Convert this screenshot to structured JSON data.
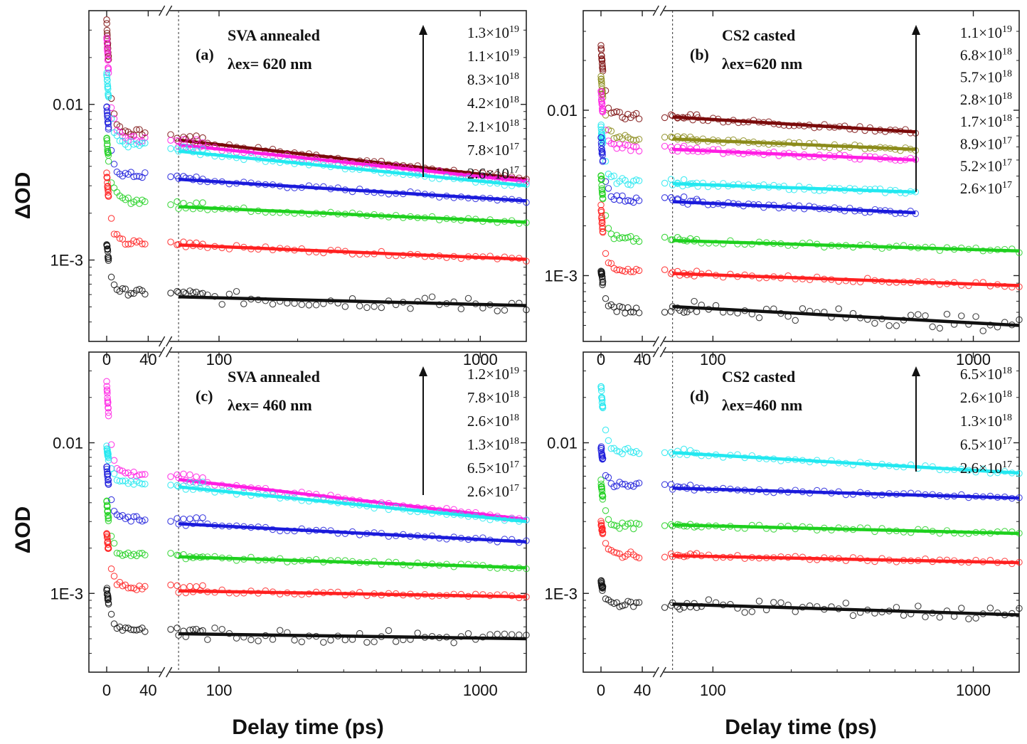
{
  "figure": {
    "xlabel": "Delay time (ps)",
    "ylabel": "ΔOD"
  },
  "chart_data": [
    {
      "type": "scatter",
      "panel": "(a)",
      "title_line1": "SVA annealed",
      "title_line2": "λex= 620 nm",
      "xlabel": "Delay time (ps)",
      "ylabel": "ΔOD",
      "y_scale": "log",
      "x_axis_note": "broken axis: linear 0–40 ps, then log scale to >1000 ps",
      "x_ticks": [
        "0",
        "40",
        "100",
        "1000"
      ],
      "y_ticks": [
        "0.01",
        "1E-3"
      ],
      "ylim": [
        0.0003,
        0.04
      ],
      "xlim_log": [
        70,
        1500
      ],
      "legend_arrow": "increasing fluence",
      "legend": [
        "1.3×10^19",
        "1.1×10^19",
        "8.3×10^18",
        "4.2×10^18",
        "2.1×10^18",
        "7.8×10^17",
        "2.6×10^17"
      ],
      "series": [
        {
          "name": "1.3×10^19",
          "color": "#7a0a0a",
          "peak": 0.035,
          "early_end": 0.0066,
          "mid": 0.0062,
          "fit": [
            [
              70,
              0.0059
            ],
            [
              1500,
              0.0033
            ]
          ]
        },
        {
          "name": "1.1×10^19",
          "color": "#ff1ee3",
          "peak": 0.028,
          "early_end": 0.006,
          "mid": 0.0058,
          "fit": [
            [
              70,
              0.0055
            ],
            [
              1500,
              0.0032
            ]
          ]
        },
        {
          "name": "8.3×10^18",
          "color": "#22e8f0",
          "peak": 0.016,
          "early_end": 0.0055,
          "mid": 0.0052,
          "fit": [
            [
              70,
              0.005
            ],
            [
              1500,
              0.003
            ]
          ]
        },
        {
          "name": "4.2×10^18",
          "color": "#1a1adb",
          "peak": 0.01,
          "early_end": 0.0035,
          "mid": 0.0034,
          "fit": [
            [
              70,
              0.0033
            ],
            [
              1500,
              0.0024
            ]
          ]
        },
        {
          "name": "2.1×10^18",
          "color": "#1ed01e",
          "peak": 0.0063,
          "early_end": 0.0024,
          "mid": 0.0023,
          "fit": [
            [
              70,
              0.0022
            ],
            [
              1500,
              0.00175
            ]
          ]
        },
        {
          "name": "7.8×10^17",
          "color": "#ff2020",
          "peak": 0.0037,
          "early_end": 0.00128,
          "mid": 0.00128,
          "fit": [
            [
              70,
              0.00125
            ],
            [
              1500,
              0.00101
            ]
          ]
        },
        {
          "name": "2.6×10^17",
          "color": "#111111",
          "peak": 0.0013,
          "early_end": 0.00062,
          "mid": 0.00062,
          "fit": [
            [
              70,
              0.00058
            ],
            [
              1500,
              0.00051
            ]
          ]
        }
      ]
    },
    {
      "type": "scatter",
      "panel": "(b)",
      "title_line1": "CS2 casted",
      "title_line2": "λex=620 nm",
      "xlabel": "Delay time (ps)",
      "ylabel": "ΔOD",
      "y_scale": "log",
      "x_ticks": [
        "0",
        "40",
        "100",
        "1000"
      ],
      "y_ticks": [
        "0.01",
        "1E-3"
      ],
      "ylim": [
        0.0004,
        0.04
      ],
      "xlim_log": [
        70,
        1500
      ],
      "legend_arrow": "increasing fluence",
      "legend": [
        "1.1×10^19",
        "6.8×10^18",
        "5.7×10^18",
        "2.8×10^18",
        "1.7×10^18",
        "8.9×10^17",
        "5.2×10^17",
        "2.6×10^17"
      ],
      "series": [
        {
          "name": "1.1×10^19",
          "color": "#7a0a0a",
          "peak": 0.024,
          "early_end": 0.0092,
          "mid": 0.0092,
          "fit": [
            [
              70,
              0.0091
            ],
            [
              600,
              0.0074
            ]
          ]
        },
        {
          "name": "6.8×10^18",
          "color": "#8b8b1a",
          "peak": 0.016,
          "early_end": 0.0068,
          "mid": 0.0068,
          "fit": [
            [
              70,
              0.0067
            ],
            [
              600,
              0.0058
            ]
          ]
        },
        {
          "name": "5.7×10^18",
          "color": "#ff1ee3",
          "peak": 0.013,
          "early_end": 0.0059,
          "mid": 0.0059,
          "fit": [
            [
              70,
              0.0058
            ],
            [
              600,
              0.005
            ]
          ]
        },
        {
          "name": "2.8×10^18",
          "color": "#22e8f0",
          "peak": 0.0082,
          "early_end": 0.0037,
          "mid": 0.0037,
          "fit": [
            [
              70,
              0.0036
            ],
            [
              600,
              0.0032
            ]
          ]
        },
        {
          "name": "1.7×10^18",
          "color": "#1a1adb",
          "peak": 0.0068,
          "early_end": 0.0029,
          "mid": 0.0029,
          "fit": [
            [
              70,
              0.0028
            ],
            [
              600,
              0.0024
            ]
          ]
        },
        {
          "name": "8.9×10^17",
          "color": "#1ed01e",
          "peak": 0.0042,
          "early_end": 0.00165,
          "mid": 0.00165,
          "fit": [
            [
              70,
              0.00163
            ],
            [
              1500,
              0.00141
            ]
          ]
        },
        {
          "name": "5.2×10^17",
          "color": "#ff2020",
          "peak": 0.0026,
          "early_end": 0.00105,
          "mid": 0.00105,
          "fit": [
            [
              70,
              0.00103
            ],
            [
              1500,
              0.00087
            ]
          ]
        },
        {
          "name": "2.6×10^17",
          "color": "#111111",
          "peak": 0.0011,
          "early_end": 0.00062,
          "mid": 0.00062,
          "fit": [
            [
              70,
              0.00065
            ],
            [
              1500,
              0.0005
            ]
          ]
        }
      ]
    },
    {
      "type": "scatter",
      "panel": "(c)",
      "title_line1": "SVA annealed",
      "title_line2": "λex= 460 nm",
      "xlabel": "Delay time (ps)",
      "ylabel": "ΔOD",
      "y_scale": "log",
      "x_ticks": [
        "0",
        "40",
        "100",
        "1000"
      ],
      "y_ticks": [
        "0.01",
        "1E-3"
      ],
      "ylim": [
        0.0003,
        0.04
      ],
      "xlim_log": [
        70,
        1500
      ],
      "legend_arrow": "increasing fluence",
      "legend": [
        "1.2×10^19",
        "7.8×10^18",
        "2.6×10^18",
        "1.3×10^18",
        "6.5×10^17",
        "2.6×10^17"
      ],
      "series": [
        {
          "name": "1.2×10^19",
          "color": "#ff1ee3",
          "peak": 0.026,
          "early_end": 0.0062,
          "mid": 0.006,
          "fit": [
            [
              70,
              0.0057
            ],
            [
              1500,
              0.0031
            ]
          ]
        },
        {
          "name": "7.8×10^18",
          "color": "#22e8f0",
          "peak": 0.0095,
          "early_end": 0.0055,
          "mid": 0.0053,
          "fit": [
            [
              70,
              0.0051
            ],
            [
              1500,
              0.003
            ]
          ]
        },
        {
          "name": "2.6×10^18",
          "color": "#1a1adb",
          "peak": 0.0072,
          "early_end": 0.0031,
          "mid": 0.0031,
          "fit": [
            [
              70,
              0.0029
            ],
            [
              1500,
              0.0022
            ]
          ]
        },
        {
          "name": "1.3×10^18",
          "color": "#1ed01e",
          "peak": 0.0042,
          "early_end": 0.0018,
          "mid": 0.0018,
          "fit": [
            [
              70,
              0.00175
            ],
            [
              1500,
              0.00148
            ]
          ]
        },
        {
          "name": "6.5×10^17",
          "color": "#ff2020",
          "peak": 0.0026,
          "early_end": 0.0011,
          "mid": 0.0011,
          "fit": [
            [
              70,
              0.00104
            ],
            [
              1500,
              0.00095
            ]
          ]
        },
        {
          "name": "2.6×10^17",
          "color": "#111111",
          "peak": 0.0011,
          "early_end": 0.00058,
          "mid": 0.00057,
          "fit": [
            [
              70,
              0.00054
            ],
            [
              1500,
              0.0005
            ]
          ]
        }
      ]
    },
    {
      "type": "scatter",
      "panel": "(d)",
      "title_line1": "CS2 casted",
      "title_line2": "λex=460 nm",
      "xlabel": "Delay time (ps)",
      "ylabel": "ΔOD",
      "y_scale": "log",
      "x_ticks": [
        "0",
        "40",
        "100",
        "1000"
      ],
      "y_ticks": [
        "0.01",
        "1E-3"
      ],
      "ylim": [
        0.0003,
        0.04
      ],
      "xlim_log": [
        70,
        1500
      ],
      "legend_arrow": "increasing fluence",
      "legend": [
        "6.5×10^18",
        "2.6×10^18",
        "1.3×10^18",
        "6.5×10^17",
        "2.6×10^17"
      ],
      "series": [
        {
          "name": "6.5×10^18",
          "color": "#22e8f0",
          "peak": 0.024,
          "early_end": 0.0088,
          "mid": 0.0088,
          "fit": [
            [
              70,
              0.0086
            ],
            [
              1500,
              0.0063
            ]
          ]
        },
        {
          "name": "2.6×10^18",
          "color": "#1a1adb",
          "peak": 0.0095,
          "early_end": 0.0052,
          "mid": 0.0052,
          "fit": [
            [
              70,
              0.005
            ],
            [
              1500,
              0.0043
            ]
          ]
        },
        {
          "name": "1.3×10^18",
          "color": "#1ed01e",
          "peak": 0.0055,
          "early_end": 0.0028,
          "mid": 0.0028,
          "fit": [
            [
              70,
              0.00285
            ],
            [
              1500,
              0.0025
            ]
          ]
        },
        {
          "name": "6.5×10^17",
          "color": "#ff2020",
          "peak": 0.003,
          "early_end": 0.0018,
          "mid": 0.0018,
          "fit": [
            [
              70,
              0.00178
            ],
            [
              1500,
              0.0016
            ]
          ]
        },
        {
          "name": "2.6×10^17",
          "color": "#111111",
          "peak": 0.0012,
          "early_end": 0.00085,
          "mid": 0.00082,
          "fit": [
            [
              70,
              0.00085
            ],
            [
              1500,
              0.00072
            ]
          ]
        }
      ]
    }
  ]
}
